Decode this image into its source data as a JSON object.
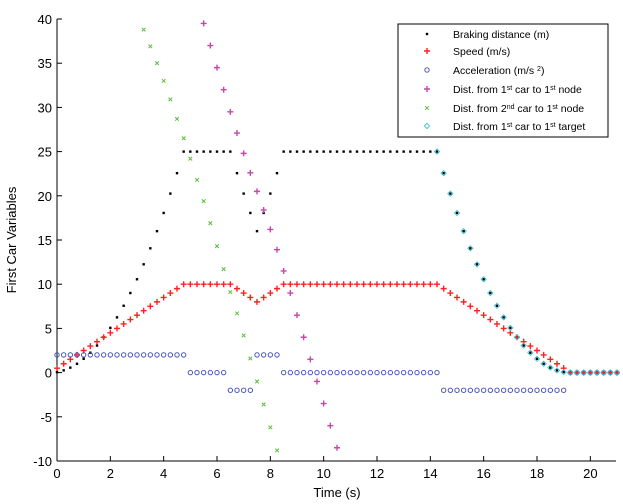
{
  "chart_data": {
    "type": "scatter",
    "title": "",
    "xlabel": "Time (s)",
    "ylabel": "First Car Variables",
    "xlim": [
      0,
      21
    ],
    "ylim": [
      -10,
      40
    ],
    "xticks": [
      0,
      2,
      4,
      6,
      8,
      10,
      12,
      14,
      16,
      18,
      20
    ],
    "yticks": [
      -10,
      -5,
      0,
      5,
      10,
      15,
      20,
      25,
      30,
      35,
      40
    ],
    "grid": false,
    "legend_position": "top-right",
    "x": [
      0,
      0.25,
      0.5,
      0.75,
      1,
      1.25,
      1.5,
      1.75,
      2,
      2.25,
      2.5,
      2.75,
      3,
      3.25,
      3.5,
      3.75,
      4,
      4.25,
      4.5,
      4.75,
      5,
      5.25,
      5.5,
      5.75,
      6,
      6.25,
      6.5,
      6.75,
      7,
      7.25,
      7.5,
      7.75,
      8,
      8.25,
      8.5,
      8.75,
      9,
      9.25,
      9.5,
      9.75,
      10,
      10.25,
      10.5,
      10.75,
      11,
      11.25,
      11.5,
      11.75,
      12,
      12.25,
      12.5,
      12.75,
      13,
      13.25,
      13.5,
      13.75,
      14,
      14.25,
      14.5,
      14.75,
      15,
      15.25,
      15.5,
      15.75,
      16,
      16.25,
      16.5,
      16.75,
      17,
      17.25,
      17.5,
      17.75,
      18,
      18.25,
      18.5,
      18.75,
      19,
      19.25,
      19.5,
      19.75,
      20,
      20.25,
      20.5,
      20.75,
      21
    ],
    "series": [
      {
        "name": "Braking distance (m)",
        "marker": "dot",
        "color": "#000000",
        "values": [
          0.06,
          0.25,
          0.56,
          1,
          1.56,
          2.25,
          3.06,
          4,
          5.06,
          6.25,
          7.56,
          9,
          10.56,
          12.25,
          14.06,
          16,
          18.06,
          20.25,
          22.56,
          25,
          25,
          25,
          25,
          25,
          25,
          25,
          25,
          22.56,
          20.25,
          18.06,
          16,
          18.06,
          20.25,
          22.56,
          25,
          25,
          25,
          25,
          25,
          25,
          25,
          25,
          25,
          25,
          25,
          25,
          25,
          25,
          25,
          25,
          25,
          25,
          25,
          25,
          25,
          25,
          25,
          25,
          22.56,
          20.25,
          18.06,
          16,
          14.06,
          12.25,
          10.56,
          9,
          7.56,
          6.25,
          5.06,
          4,
          3.06,
          2.25,
          1.56,
          1,
          0.56,
          0.25,
          0.06,
          0,
          0,
          0,
          0,
          0,
          0,
          0,
          0
        ]
      },
      {
        "name": "Speed (m/s)",
        "marker": "plus",
        "color": "#ff2020",
        "values": [
          0.5,
          1,
          1.5,
          2,
          2.5,
          3,
          3.5,
          4,
          4.5,
          5,
          5.5,
          6,
          6.5,
          7,
          7.5,
          8,
          8.5,
          9,
          9.5,
          10,
          10,
          10,
          10,
          10,
          10,
          10,
          10,
          9.5,
          9,
          8.5,
          8,
          8.5,
          9,
          9.5,
          10,
          10,
          10,
          10,
          10,
          10,
          10,
          10,
          10,
          10,
          10,
          10,
          10,
          10,
          10,
          10,
          10,
          10,
          10,
          10,
          10,
          10,
          10,
          10,
          9.5,
          9,
          8.5,
          8,
          7.5,
          7,
          6.5,
          6,
          5.5,
          5,
          4.5,
          4,
          3.5,
          3,
          2.5,
          2,
          1.5,
          1,
          0.5,
          0,
          0,
          0,
          0,
          0,
          0,
          0,
          0
        ]
      },
      {
        "name": "Acceleration (m/s ^{2})",
        "marker": "circle",
        "color": "#3848b8",
        "values": [
          2,
          2,
          2,
          2,
          2,
          2,
          2,
          2,
          2,
          2,
          2,
          2,
          2,
          2,
          2,
          2,
          2,
          2,
          2,
          2,
          0,
          0,
          0,
          0,
          0,
          0,
          -2,
          -2,
          -2,
          -2,
          2,
          2,
          2,
          2,
          0,
          0,
          0,
          0,
          0,
          0,
          0,
          0,
          0,
          0,
          0,
          0,
          0,
          0,
          0,
          0,
          0,
          0,
          0,
          0,
          0,
          0,
          0,
          0,
          -2,
          -2,
          -2,
          -2,
          -2,
          -2,
          -2,
          -2,
          -2,
          -2,
          -2,
          -2,
          -2,
          -2,
          -2,
          -2,
          -2,
          -2,
          -2,
          0,
          0,
          0,
          0,
          0,
          0,
          0,
          0
        ]
      },
      {
        "name": "Dist. from 1^{st} car to 1^{st} node",
        "marker": "plus",
        "color": "#c448a8",
        "x": [
          5.5,
          5.75,
          6,
          6.25,
          6.5,
          6.75,
          7,
          7.25,
          7.5,
          7.75,
          8,
          8.25,
          8.5,
          8.75,
          9,
          9.25,
          9.5,
          9.75,
          10,
          10.25,
          10.5
        ],
        "values": [
          39.5,
          37.0,
          34.5,
          32.0,
          29.5,
          27.1,
          24.8,
          22.6,
          20.5,
          18.4,
          16.2,
          13.9,
          11.5,
          9.0,
          6.5,
          4.0,
          1.5,
          -1.0,
          -3.5,
          -6.0,
          -8.5
        ]
      },
      {
        "name": "Dist. from 2^{nd} car to 1^{st} node",
        "marker": "x",
        "color": "#58c038",
        "x": [
          3.25,
          3.5,
          3.75,
          4,
          4.25,
          4.5,
          4.75,
          5,
          5.25,
          5.5,
          5.75,
          6,
          6.25,
          6.5,
          6.75,
          7,
          7.25,
          7.5,
          7.75,
          8,
          8.25
        ],
        "values": [
          38.8,
          36.9,
          35.0,
          33.0,
          30.9,
          28.7,
          26.5,
          24.2,
          21.8,
          19.4,
          16.9,
          14.3,
          11.7,
          9.1,
          6.7,
          4.2,
          1.6,
          -1.0,
          -3.6,
          -6.2,
          -8.8
        ]
      },
      {
        "name": "Dist. from 1^{st} car to 1^{st} target",
        "marker": "diamond",
        "color": "#40c0d8",
        "x": [
          14.25,
          14.5,
          14.75,
          15,
          15.25,
          15.5,
          15.75,
          16,
          16.25,
          16.5,
          16.75,
          17,
          17.25,
          17.5,
          17.75,
          18,
          18.25,
          18.5,
          18.75,
          19,
          19.25,
          19.5,
          19.75,
          20,
          20.25,
          20.5,
          20.75,
          21
        ],
        "values": [
          25,
          22.56,
          20.25,
          18.06,
          16,
          14.06,
          12.25,
          10.56,
          9,
          7.56,
          6.25,
          5.06,
          4,
          3.06,
          2.25,
          1.56,
          1,
          0.56,
          0.25,
          0.06,
          0,
          0,
          0,
          0,
          0,
          0,
          0,
          0
        ]
      }
    ]
  }
}
